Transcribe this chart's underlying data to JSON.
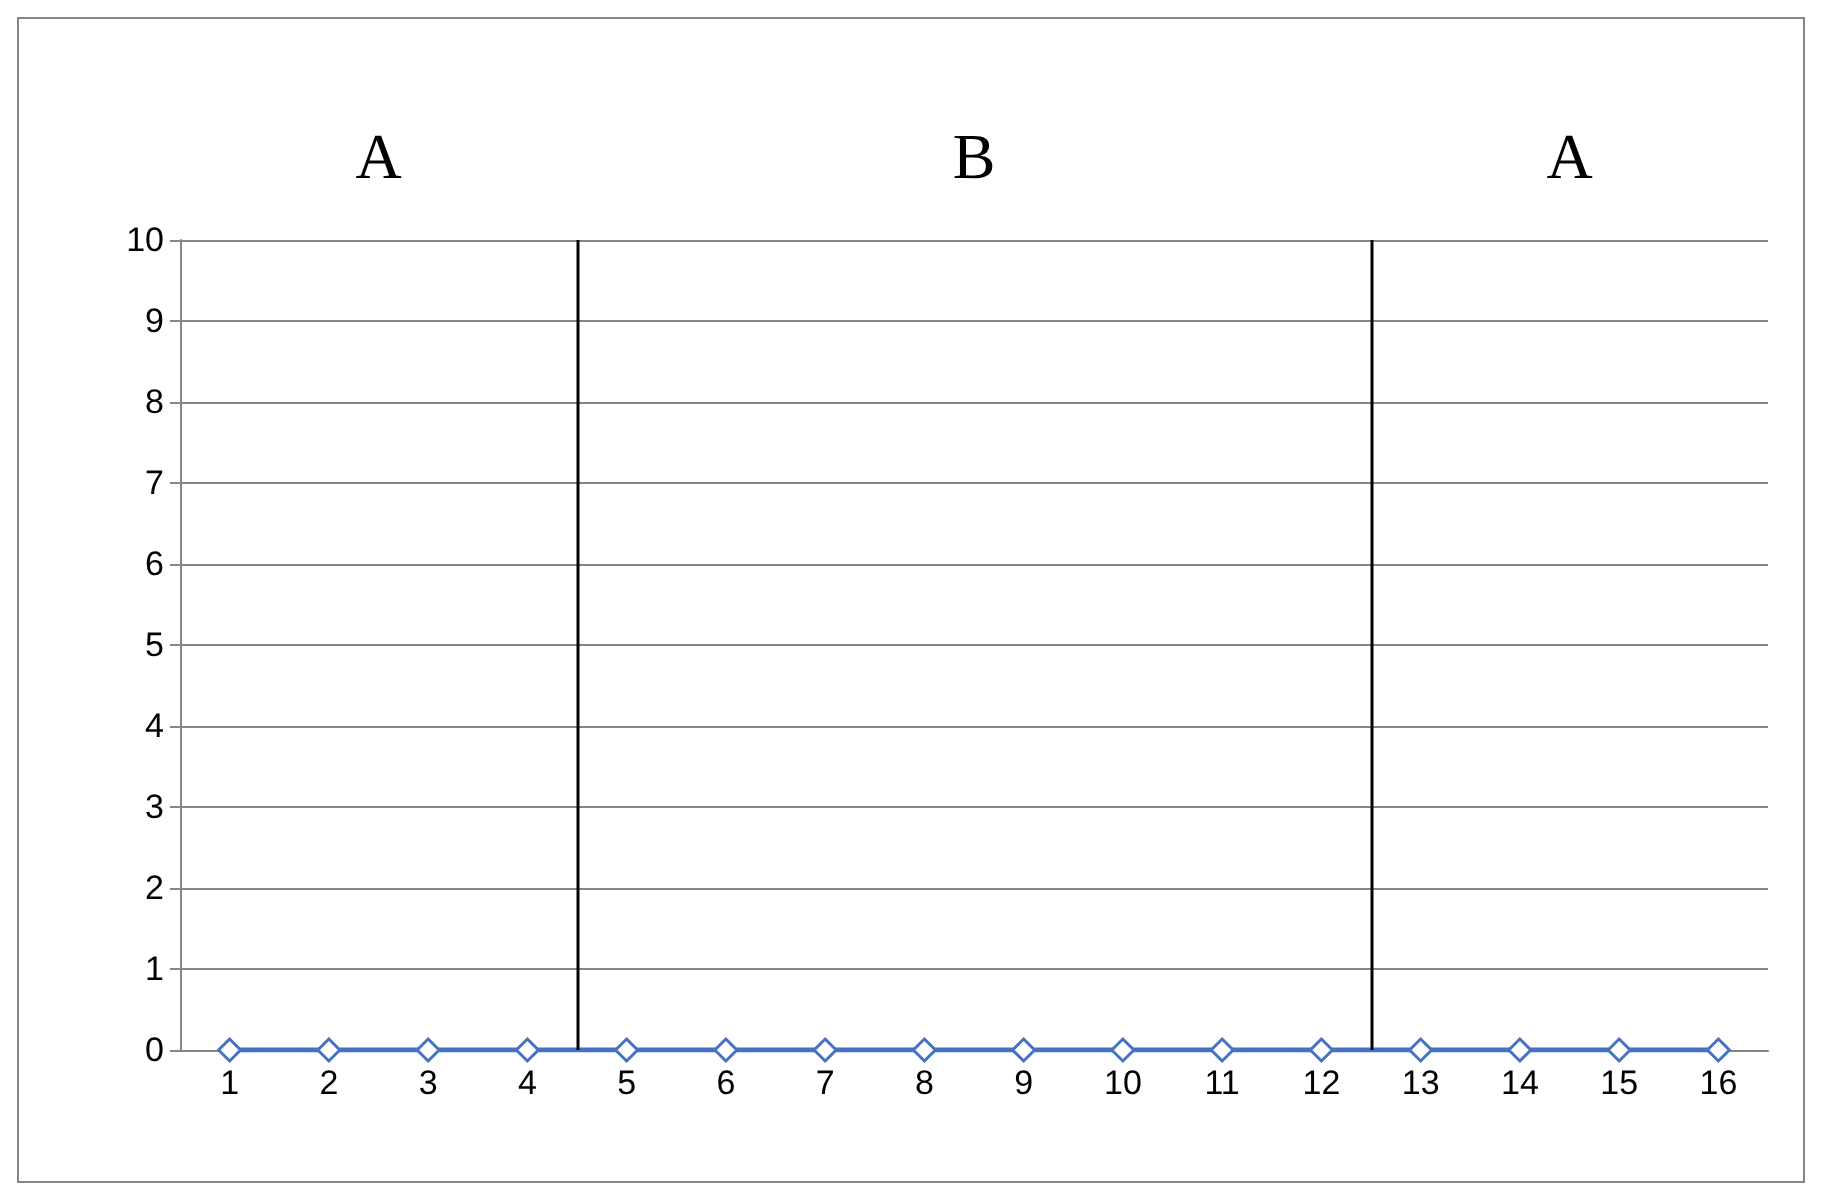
{
  "chart_data": {
    "type": "line",
    "x": [
      1,
      2,
      3,
      4,
      5,
      6,
      7,
      8,
      9,
      10,
      11,
      12,
      13,
      14,
      15,
      16
    ],
    "series": [
      {
        "color": "#4472c4",
        "values": [
          0,
          0,
          0,
          0,
          0,
          0,
          0,
          0,
          0,
          0,
          0,
          0,
          0,
          0,
          0,
          0
        ]
      }
    ],
    "xlim": [
      0.5,
      16.5
    ],
    "xticks": [
      1,
      2,
      3,
      4,
      5,
      6,
      7,
      8,
      9,
      10,
      11,
      12,
      13,
      14,
      15,
      16
    ],
    "ylim": [
      0,
      10
    ],
    "yticks": [
      0,
      1,
      2,
      3,
      4,
      5,
      6,
      7,
      8,
      9,
      10
    ],
    "ref_lines": [
      {
        "axis": "x",
        "value": 4.5,
        "color": "#000000"
      },
      {
        "axis": "x",
        "value": 12.5,
        "color": "#000000"
      }
    ],
    "annotations": [
      "A",
      "B",
      "A"
    ],
    "grid": "y",
    "marker": "diamond"
  }
}
